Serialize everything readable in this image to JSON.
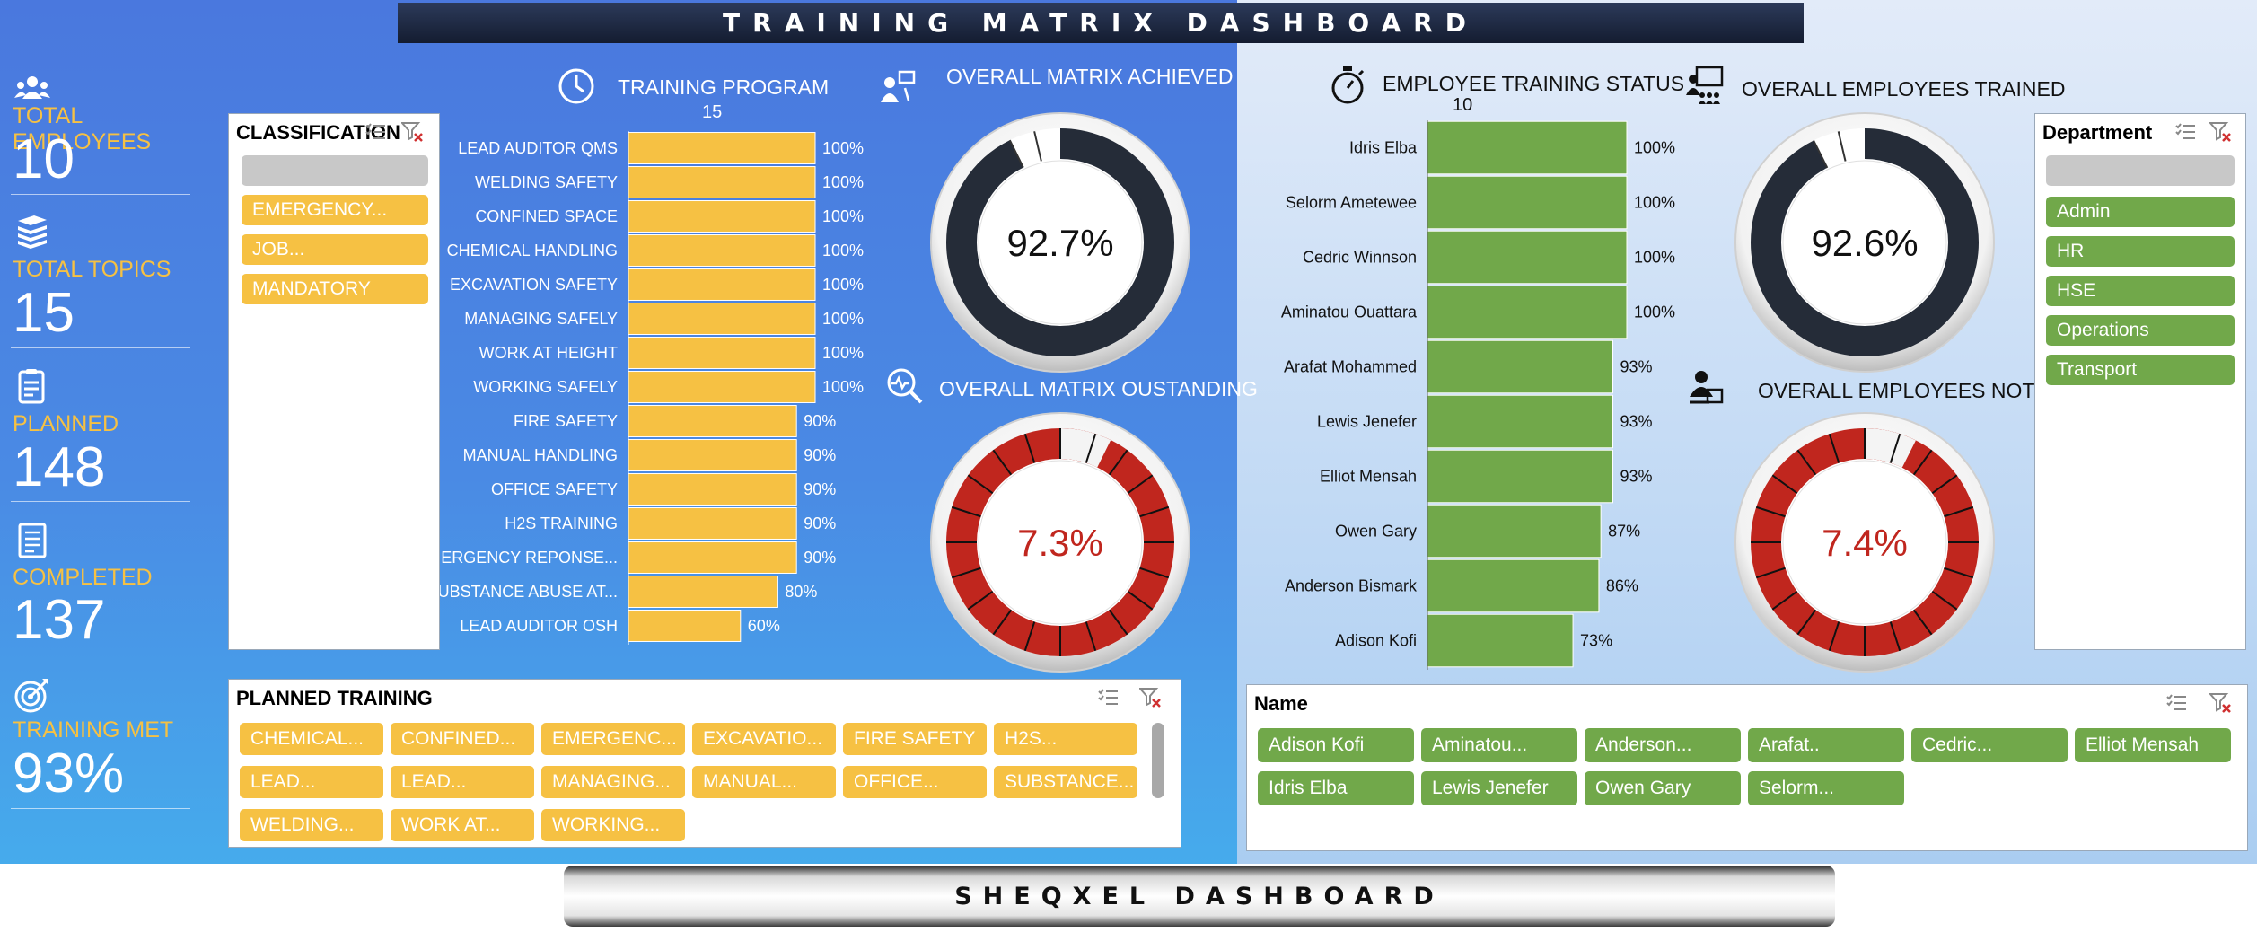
{
  "header": {
    "title": "TRAINING MATRIX DASHBOARD"
  },
  "footer": {
    "title": "SHEQXEL DASHBOARD"
  },
  "kpis": [
    {
      "label": "TOTAL EMPLOYEES",
      "value": "10",
      "icon": "people-icon"
    },
    {
      "label": "TOTAL TOPICS",
      "value": "15",
      "icon": "books-icon"
    },
    {
      "label": "PLANNED",
      "value": "148",
      "icon": "clipboard-icon"
    },
    {
      "label": "COMPLETED",
      "value": "137",
      "icon": "checklist-icon"
    },
    {
      "label": "TRAINING MET",
      "value": "93%",
      "icon": "target-icon"
    }
  ],
  "classification_slicer": {
    "title": "CLASSIFICATION",
    "items": [
      "",
      "EMERGENCY...",
      "JOB...",
      "MANDATORY"
    ]
  },
  "planned_training_slicer": {
    "title": "PLANNED TRAINING",
    "items": [
      "CHEMICAL...",
      "CONFINED...",
      "EMERGENC...",
      "EXCAVATIO...",
      "FIRE SAFETY",
      "H2S...",
      "LEAD...",
      "LEAD...",
      "MANAGING...",
      "MANUAL...",
      "OFFICE...",
      "SUBSTANCE...",
      "WELDING...",
      "WORK AT...",
      "WORKING..."
    ]
  },
  "department_slicer": {
    "title": "Department",
    "items": [
      "",
      "Admin",
      "HR",
      "HSE",
      "Operations",
      "Transport"
    ]
  },
  "name_slicer": {
    "title": "Name",
    "items": [
      "Adison Kofi",
      "Aminatou...",
      "Anderson...",
      "Arafat..",
      "Cedric...",
      "Elliot Mensah",
      "Idris Elba",
      "Lewis Jenefer",
      "Owen Gary",
      "Selorm..."
    ]
  },
  "chart_data": [
    {
      "type": "bar",
      "orientation": "horizontal",
      "title": "TRAINING PROGRAM",
      "subtitle": "15",
      "bar_color": "#f6c143",
      "categories": [
        "LEAD AUDITOR QMS",
        "WELDING SAFETY",
        "CONFINED SPACE",
        "CHEMICAL HANDLING",
        "EXCAVATION SAFETY",
        "MANAGING SAFELY",
        "WORK AT HEIGHT",
        "WORKING SAFELY",
        "FIRE SAFETY",
        "MANUAL HANDLING",
        "OFFICE SAFETY",
        "H2S TRAINING",
        "EMERGENCY REPONSE...",
        "SUBSTANCE ABUSE AT...",
        "LEAD AUDITOR OSH"
      ],
      "values": [
        100,
        100,
        100,
        100,
        100,
        100,
        100,
        100,
        90,
        90,
        90,
        90,
        90,
        80,
        60
      ],
      "value_labels": [
        "100%",
        "100%",
        "100%",
        "100%",
        "100%",
        "100%",
        "100%",
        "100%",
        "90%",
        "90%",
        "90%",
        "90%",
        "90%",
        "80%",
        "60%"
      ],
      "xlim": [
        0,
        100
      ]
    },
    {
      "type": "bar",
      "orientation": "horizontal",
      "title": "EMPLOYEE TRAINING STATUS",
      "subtitle": "10",
      "bar_color": "#71a84a",
      "categories": [
        "Idris Elba",
        "Selorm Ametewee",
        "Cedric Winnson",
        "Aminatou Ouattara",
        "Arafat Mohammed",
        "Lewis Jenefer",
        "Elliot Mensah",
        "Owen Gary",
        "Anderson Bismark",
        "Adison Kofi"
      ],
      "values": [
        100,
        100,
        100,
        100,
        93,
        93,
        93,
        87,
        86,
        73
      ],
      "value_labels": [
        "100%",
        "100%",
        "100%",
        "100%",
        "93%",
        "93%",
        "93%",
        "87%",
        "86%",
        "73%"
      ],
      "xlim": [
        0,
        100
      ]
    },
    {
      "type": "pie",
      "style": "donut",
      "title": "OVERALL MATRIX ACHIEVED",
      "value": 92.7,
      "center_label": "92.7%",
      "color": "#252c38",
      "text_color": "#111111"
    },
    {
      "type": "pie",
      "style": "donut",
      "title": "OVERALL MATRIX OUSTANDING",
      "value": 7.3,
      "center_label": "7.3%",
      "color": "#c0261e",
      "text_color": "#c0261e"
    },
    {
      "type": "pie",
      "style": "donut",
      "title": "OVERALL EMPLOYEES TRAINED",
      "value": 92.6,
      "center_label": "92.6%",
      "color": "#252c38",
      "text_color": "#111111"
    },
    {
      "type": "pie",
      "style": "donut",
      "title": "OVERALL EMPLOYEES NOT",
      "value": 7.4,
      "center_label": "7.4%",
      "color": "#c0261e",
      "text_color": "#c0261e"
    }
  ]
}
